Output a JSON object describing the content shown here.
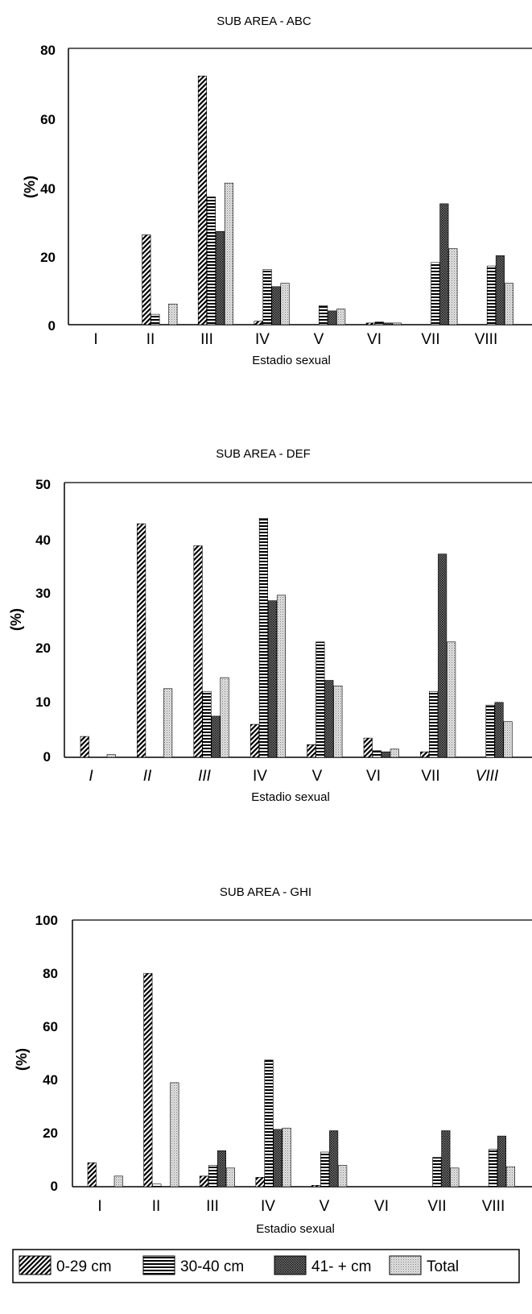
{
  "chart_data": [
    {
      "type": "bar",
      "title": "SUB AREA - ABC",
      "xlabel": "Estadio sexual",
      "ylabel": "(%)",
      "ylim": [
        0,
        80
      ],
      "yticks": [
        "0",
        "20",
        "40",
        "60",
        "80"
      ],
      "categories": [
        "I",
        "II",
        "III",
        "IV",
        "V",
        "VI",
        "VII",
        "VIII"
      ],
      "series": [
        {
          "name": "0-29 cm",
          "values": [
            0,
            26,
            72,
            1,
            0,
            0.5,
            0,
            0
          ]
        },
        {
          "name": "30-40 cm",
          "values": [
            0,
            3,
            37,
            16,
            5.5,
            0.8,
            18,
            17
          ]
        },
        {
          "name": "41- + cm",
          "values": [
            0,
            0,
            27,
            11,
            4,
            0.5,
            35,
            20
          ]
        },
        {
          "name": "Total",
          "values": [
            0,
            6,
            41,
            12,
            4.5,
            0.5,
            22,
            12
          ]
        }
      ]
    },
    {
      "type": "bar",
      "title": "SUB AREA - DEF",
      "xlabel": "Estadio sexual",
      "ylabel": "(%)",
      "ylim": [
        0,
        50
      ],
      "yticks": [
        "0",
        "10",
        "20",
        "30",
        "40",
        "50"
      ],
      "categories": [
        "I",
        "II",
        "III",
        "IV",
        "V",
        "VI",
        "VII",
        "VIII"
      ],
      "series": [
        {
          "name": "0-29 cm",
          "values": [
            3.8,
            42.5,
            38.5,
            6,
            2.3,
            3.5,
            1,
            0
          ]
        },
        {
          "name": "30-40 cm",
          "values": [
            0,
            0,
            12,
            43.5,
            21,
            1.2,
            12,
            9.5
          ]
        },
        {
          "name": "41- + cm",
          "values": [
            0,
            0,
            7.5,
            28.5,
            14,
            1,
            37,
            10
          ]
        },
        {
          "name": "Total",
          "values": [
            0.5,
            12.5,
            14.5,
            29.5,
            13,
            1.5,
            21,
            6.5
          ]
        }
      ]
    },
    {
      "type": "bar",
      "title": "SUB AREA - GHI",
      "xlabel": "Estadio sexual",
      "ylabel": "(%)",
      "ylim": [
        0,
        100
      ],
      "yticks": [
        "0",
        "20",
        "40",
        "60",
        "80",
        "100"
      ],
      "categories": [
        "I",
        "II",
        "III",
        "IV",
        "V",
        "VI",
        "VII",
        "VIII"
      ],
      "series": [
        {
          "name": "0-29 cm",
          "values": [
            9,
            80,
            4,
            3.5,
            0.5,
            0,
            0,
            0
          ]
        },
        {
          "name": "30-40 cm",
          "values": [
            0,
            1,
            8,
            47.5,
            13,
            0,
            11,
            14
          ]
        },
        {
          "name": "41- + cm",
          "values": [
            0,
            0,
            13.5,
            21.5,
            21,
            0,
            21,
            19
          ]
        },
        {
          "name": "Total",
          "values": [
            4,
            39,
            7,
            22,
            8,
            0,
            7,
            7.5
          ]
        }
      ]
    }
  ],
  "legend": {
    "items": [
      {
        "label": "0-29 cm",
        "pattern": "diagonal"
      },
      {
        "label": "30-40 cm",
        "pattern": "horizontal"
      },
      {
        "label": "41- + cm",
        "pattern": "crosshatch"
      },
      {
        "label": "Total",
        "pattern": "dots"
      }
    ]
  },
  "colors": {
    "ink": "#000000",
    "background": "#ffffff"
  }
}
